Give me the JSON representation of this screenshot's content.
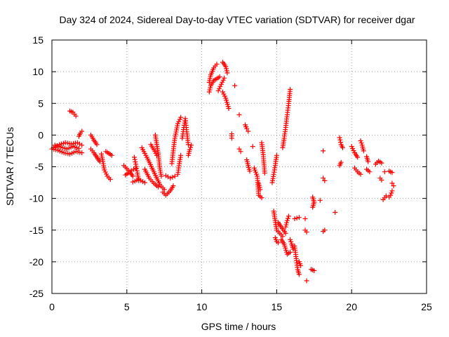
{
  "chart_data": {
    "type": "scatter",
    "title": "Day 324 of 2024, Sidereal Day-to-day VTEC variation (SDTVAR) for receiver dgar",
    "xlabel": "GPS time / hours",
    "ylabel": "SDTVAR / TECUs",
    "xlim": [
      0,
      25
    ],
    "ylim": [
      -25,
      15
    ],
    "xticks": [
      0,
      5,
      10,
      15,
      20,
      25
    ],
    "yticks": [
      -25,
      -20,
      -15,
      -10,
      -5,
      0,
      5,
      10,
      15
    ],
    "grid": true,
    "marker": "plus",
    "color": "#ff0000",
    "series": [
      {
        "name": "SDTVAR",
        "arcs": [
          [
            0.0,
            -2.2,
            0.4,
            -2.4,
            0.8,
            -2.8,
            1.2,
            -3.0,
            1.6,
            -2.6,
            2.0,
            -2.8
          ],
          [
            0.1,
            -2.0,
            0.5,
            -1.5,
            0.9,
            -1.2,
            1.3,
            -1.4,
            1.7,
            -1.2,
            2.0,
            -1.6
          ],
          [
            0.2,
            -1.6,
            0.6,
            -1.9,
            1.0,
            -2.2,
            1.4,
            -1.8,
            1.8,
            -2.1
          ],
          [
            1.2,
            3.8,
            1.4,
            3.6,
            1.6,
            3.0
          ],
          [
            1.8,
            -0.2,
            1.9,
            0.3,
            2.0,
            0.6
          ],
          [
            2.6,
            0.0,
            2.8,
            -0.8,
            3.0,
            -1.5
          ],
          [
            2.6,
            -2.2,
            2.8,
            -2.8,
            3.0,
            -3.5,
            3.2,
            -4.2
          ],
          [
            3.3,
            -3.0,
            3.4,
            -4.2,
            3.5,
            -5.5,
            3.7,
            -6.5,
            3.9,
            -7.0
          ],
          [
            3.6,
            -2.6,
            3.8,
            -2.9,
            4.0,
            -3.2
          ],
          [
            4.8,
            -4.8,
            5.0,
            -5.3,
            5.2,
            -5.8,
            5.4,
            -6.5
          ],
          [
            4.9,
            -6.3,
            5.1,
            -6.0,
            5.3,
            -5.6,
            5.6,
            -5.2
          ],
          [
            5.5,
            -3.5,
            5.6,
            -4.6,
            5.7,
            -6.0,
            5.8,
            -7.2
          ],
          [
            5.4,
            -7.4,
            5.8,
            -7.0,
            6.2,
            -7.5
          ],
          [
            6.0,
            -2.0,
            6.4,
            -3.8,
            6.8,
            -5.8,
            7.2,
            -7.8,
            7.5,
            -8.6
          ],
          [
            6.2,
            -5.4,
            6.5,
            -6.8,
            6.8,
            -7.6,
            7.1,
            -8.2
          ],
          [
            6.6,
            -1.5,
            6.8,
            -2.3,
            7.0,
            -3.2
          ],
          [
            6.9,
            0.0,
            7.0,
            -1.5,
            7.1,
            -3.0,
            7.2,
            -5.2,
            7.3,
            -6.5
          ],
          [
            7.4,
            -9.0,
            7.6,
            -9.5,
            7.9,
            -8.8,
            8.1,
            -8.0
          ],
          [
            7.6,
            -6.4,
            7.9,
            -6.8,
            8.2,
            -6.5
          ],
          [
            8.0,
            -4.5,
            8.1,
            -2.5,
            8.2,
            -0.5,
            8.4,
            1.8,
            8.6,
            2.8
          ],
          [
            8.4,
            -6.2,
            8.5,
            -4.5,
            8.6,
            -3.2
          ],
          [
            8.7,
            -0.5,
            8.8,
            1.2,
            8.9,
            2.6,
            9.0,
            0.5,
            9.1,
            -1.5
          ],
          [
            9.1,
            -3.2,
            9.2,
            -2.3,
            9.3,
            -1.6
          ],
          [
            10.5,
            6.8,
            10.6,
            7.8,
            10.8,
            8.6,
            11.0,
            8.9,
            11.2,
            9.2
          ],
          [
            10.5,
            8.3,
            10.6,
            9.5,
            10.8,
            10.6,
            11.0,
            11.2
          ],
          [
            11.1,
            7.0,
            11.3,
            8.0,
            11.5,
            9.0
          ],
          [
            11.4,
            11.5,
            11.6,
            10.8,
            11.7,
            9.8
          ],
          [
            11.4,
            6.8,
            11.6,
            5.8,
            11.8,
            4.2
          ],
          [
            12.0,
            0.2,
            12.0,
            -0.5
          ],
          [
            12.2,
            7.8
          ],
          [
            12.5,
            3.2
          ],
          [
            12.5,
            -2.2,
            12.6,
            -2.6
          ],
          [
            12.9,
            1.6,
            13.0,
            1.0,
            13.1,
            0.6
          ],
          [
            13.0,
            -3.9,
            13.1,
            -4.8,
            13.2,
            -5.7
          ],
          [
            13.4,
            -1.8
          ],
          [
            13.5,
            -5.2,
            13.7,
            -6.5,
            13.8,
            -9.5,
            14.0,
            -9.9
          ],
          [
            13.8,
            -7.6,
            13.9,
            -8.6
          ],
          [
            14.0,
            -1.2,
            14.1,
            -3.1,
            14.2,
            -6.0
          ],
          [
            14.7,
            -7.5,
            14.8,
            -6.2,
            14.9,
            -4.8,
            15.0,
            -3.2
          ],
          [
            14.8,
            -12.0,
            14.9,
            -13.5,
            15.0,
            -15.0,
            15.2,
            -15.5,
            15.4,
            -16.0
          ],
          [
            14.9,
            -16.2,
            15.0,
            -16.8,
            15.1,
            -17.0
          ],
          [
            15.1,
            -13.8,
            15.3,
            -14.5,
            15.6,
            -15.5
          ],
          [
            15.3,
            -16.5,
            15.5,
            -17.2,
            15.7,
            -18.8,
            15.9,
            -18.5
          ],
          [
            15.6,
            -14.5,
            15.7,
            -13.5,
            15.8,
            -12.8
          ],
          [
            15.4,
            -2.0,
            15.5,
            -0.5,
            15.6,
            1.2,
            15.7,
            3.2,
            15.8,
            5.0,
            15.9,
            7.2
          ],
          [
            15.9,
            -16.5,
            16.0,
            -17.2,
            16.1,
            -18.0
          ],
          [
            16.2,
            -13.2,
            16.5,
            -13.0
          ],
          [
            16.2,
            -17.5,
            16.3,
            -19.5,
            16.4,
            -21.2,
            16.5,
            -22.0
          ],
          [
            16.5,
            -20.0,
            16.6,
            -20.6
          ],
          [
            16.9,
            -13.2
          ],
          [
            16.9,
            -15.0,
            17.0,
            -15.3
          ],
          [
            17.0,
            -23.0
          ],
          [
            17.3,
            -21.2,
            17.5,
            -21.4
          ],
          [
            17.4,
            -9.8,
            17.5,
            -10.6,
            17.4,
            -11.4
          ],
          [
            17.9,
            -10.3
          ],
          [
            18.1,
            -6.8,
            18.2,
            -7.2
          ],
          [
            18.1,
            -2.5
          ],
          [
            18.1,
            -15.2,
            18.2,
            -15.0
          ],
          [
            18.9,
            -12.2
          ],
          [
            19.2,
            -0.4,
            19.3,
            -1.5,
            19.4,
            -2.0
          ],
          [
            19.2,
            -4.8,
            19.3,
            -4.3
          ],
          [
            20.0,
            -1.8,
            20.2,
            -2.8,
            20.4,
            -3.5
          ],
          [
            20.2,
            -5.2,
            20.4,
            -5.8,
            20.6,
            -6.2
          ],
          [
            20.6,
            -0.9,
            20.7,
            -1.6,
            20.8,
            -2.5
          ],
          [
            21.0,
            -3.4,
            21.1,
            -4.2
          ],
          [
            21.0,
            -5.4,
            21.2,
            -5.8
          ],
          [
            21.6,
            -4.6,
            21.8,
            -4.1,
            22.0,
            -4.4
          ],
          [
            21.9,
            -6.8,
            22.0,
            -7.1
          ],
          [
            22.2,
            -5.8
          ],
          [
            22.1,
            -10.2,
            22.3,
            -9.6
          ],
          [
            22.5,
            -5.7,
            22.7,
            -5.9
          ],
          [
            22.7,
            -7.6,
            22.8,
            -8.0
          ],
          [
            22.5,
            -9.8,
            22.6,
            -9.5,
            22.7,
            -8.8
          ]
        ]
      }
    ]
  }
}
